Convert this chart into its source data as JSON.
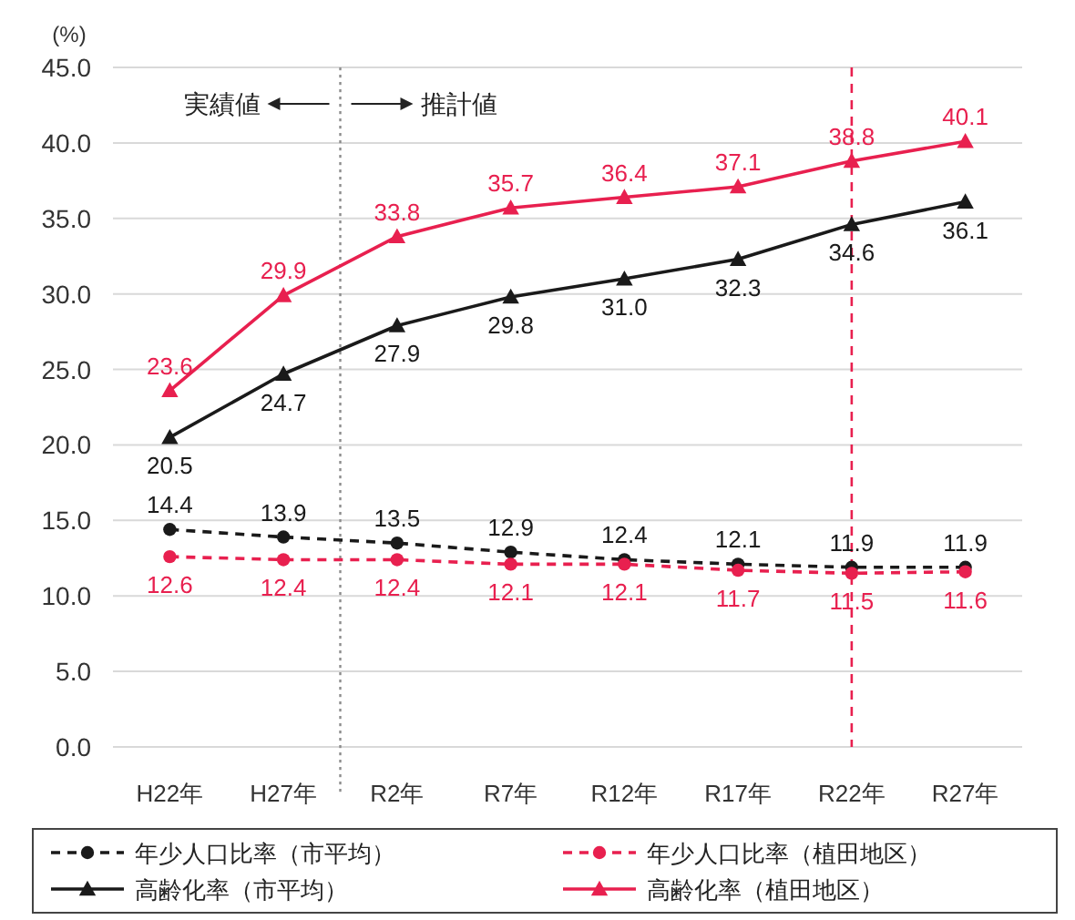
{
  "chart_data": {
    "type": "line",
    "ylabel": "(%)",
    "categories": [
      "H22年",
      "H27年",
      "R2年",
      "R7年",
      "R12年",
      "R17年",
      "R22年",
      "R27年"
    ],
    "ylim": [
      0,
      45
    ],
    "yticks": [
      {
        "value": 0,
        "label": "0.0"
      },
      {
        "value": 5,
        "label": "5.0"
      },
      {
        "value": 10,
        "label": "10.0"
      },
      {
        "value": 15,
        "label": "15.0"
      },
      {
        "value": 20,
        "label": "20.0"
      },
      {
        "value": 25,
        "label": "25.0"
      },
      {
        "value": 30,
        "label": "30.0"
      },
      {
        "value": 35,
        "label": "35.0"
      },
      {
        "value": 40,
        "label": "40.0"
      },
      {
        "value": 45,
        "label": "45.0"
      }
    ],
    "grid": "y",
    "legend": "bottom",
    "series": [
      {
        "name": "年少人口比率（市平均）",
        "color": "#1a1a1a",
        "marker": "circle",
        "line_style": "dashed",
        "values": [
          14.4,
          13.9,
          13.5,
          12.9,
          12.4,
          12.1,
          11.9,
          11.9
        ],
        "value_labels": [
          "14.4",
          "13.9",
          "13.5",
          "12.9",
          "12.4",
          "12.1",
          "11.9",
          "11.9"
        ]
      },
      {
        "name": "年少人口比率（植田地区）",
        "color": "#e8204f",
        "marker": "circle",
        "line_style": "dashed",
        "values": [
          12.6,
          12.4,
          12.4,
          12.1,
          12.1,
          11.7,
          11.5,
          11.6
        ],
        "value_labels": [
          "12.6",
          "12.4",
          "12.4",
          "12.1",
          "12.1",
          "11.7",
          "11.5",
          "11.6"
        ]
      },
      {
        "name": "高齢化率（市平均）",
        "color": "#1a1a1a",
        "marker": "triangle",
        "line_style": "solid",
        "values": [
          20.5,
          24.7,
          27.9,
          29.8,
          31.0,
          32.3,
          34.6,
          36.1
        ],
        "value_labels": [
          "20.5",
          "24.7",
          "27.9",
          "29.8",
          "31.0",
          "32.3",
          "34.6",
          "36.1"
        ]
      },
      {
        "name": "高齢化率（植田地区）",
        "color": "#e8204f",
        "marker": "triangle",
        "line_style": "solid",
        "values": [
          23.6,
          29.9,
          33.8,
          35.7,
          36.4,
          37.1,
          38.8,
          40.1
        ],
        "value_labels": [
          "23.6",
          "29.9",
          "33.8",
          "35.7",
          "36.4",
          "37.1",
          "38.8",
          "40.1"
        ]
      }
    ],
    "ref_lines": [
      {
        "axis": "x",
        "value": "R22年",
        "color": "#e8204f",
        "line_style": "dashed"
      }
    ],
    "annotations": [
      "実績値",
      "推計値"
    ]
  }
}
